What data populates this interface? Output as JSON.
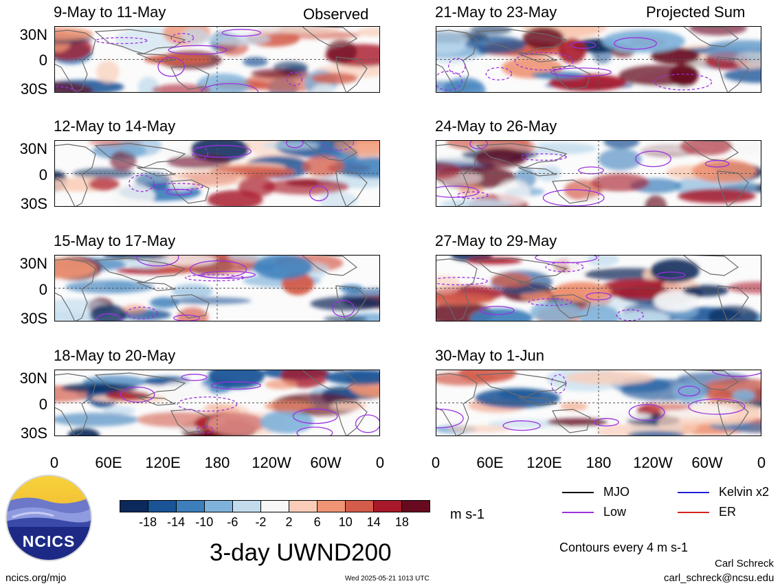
{
  "panels": [
    {
      "title": "9-May to 11-May",
      "corner": "Observed"
    },
    {
      "title": "12-May to 14-May",
      "corner": ""
    },
    {
      "title": "15-May to 17-May",
      "corner": ""
    },
    {
      "title": "18-May to 20-May",
      "corner": ""
    },
    {
      "title": "21-May to 23-May",
      "corner": "Projected Sum"
    },
    {
      "title": "24-May to 26-May",
      "corner": ""
    },
    {
      "title": "27-May to 29-May",
      "corner": ""
    },
    {
      "title": "30-May to 1-Jun",
      "corner": ""
    }
  ],
  "lat_labels": [
    "30N",
    "0",
    "30S"
  ],
  "lon_labels": [
    "0",
    "60E",
    "120E",
    "180",
    "120W",
    "60W",
    "0"
  ],
  "colorbar": {
    "ticks": [
      "-18",
      "-14",
      "-10",
      "-6",
      "-2",
      "2",
      "6",
      "10",
      "14",
      "18"
    ],
    "colors": [
      "#0b2a5b",
      "#1a5396",
      "#3d7fbc",
      "#7fb2da",
      "#c2dcee",
      "#f7f7f7",
      "#f9cdb8",
      "#ef9474",
      "#d45c4a",
      "#a8192b",
      "#670a1f"
    ],
    "units": "m s-1"
  },
  "legend": [
    {
      "label": "MJO",
      "color": "#000000"
    },
    {
      "label": "Kelvin x2",
      "color": "#1f1fd8"
    },
    {
      "label": "Low",
      "color": "#9b30e0"
    },
    {
      "label": "ER",
      "color": "#d8231f"
    }
  ],
  "contour_note": "Contours every 4 m s-1",
  "main_title": "3-day UWND200",
  "logo_text": "NCICS",
  "url": "ncics.org/mjo",
  "timestamp": "Wed 2025-05-21 1013 UTC",
  "author": "Carl Schreck",
  "email": "carl_schreck@ncsu.edu"
}
